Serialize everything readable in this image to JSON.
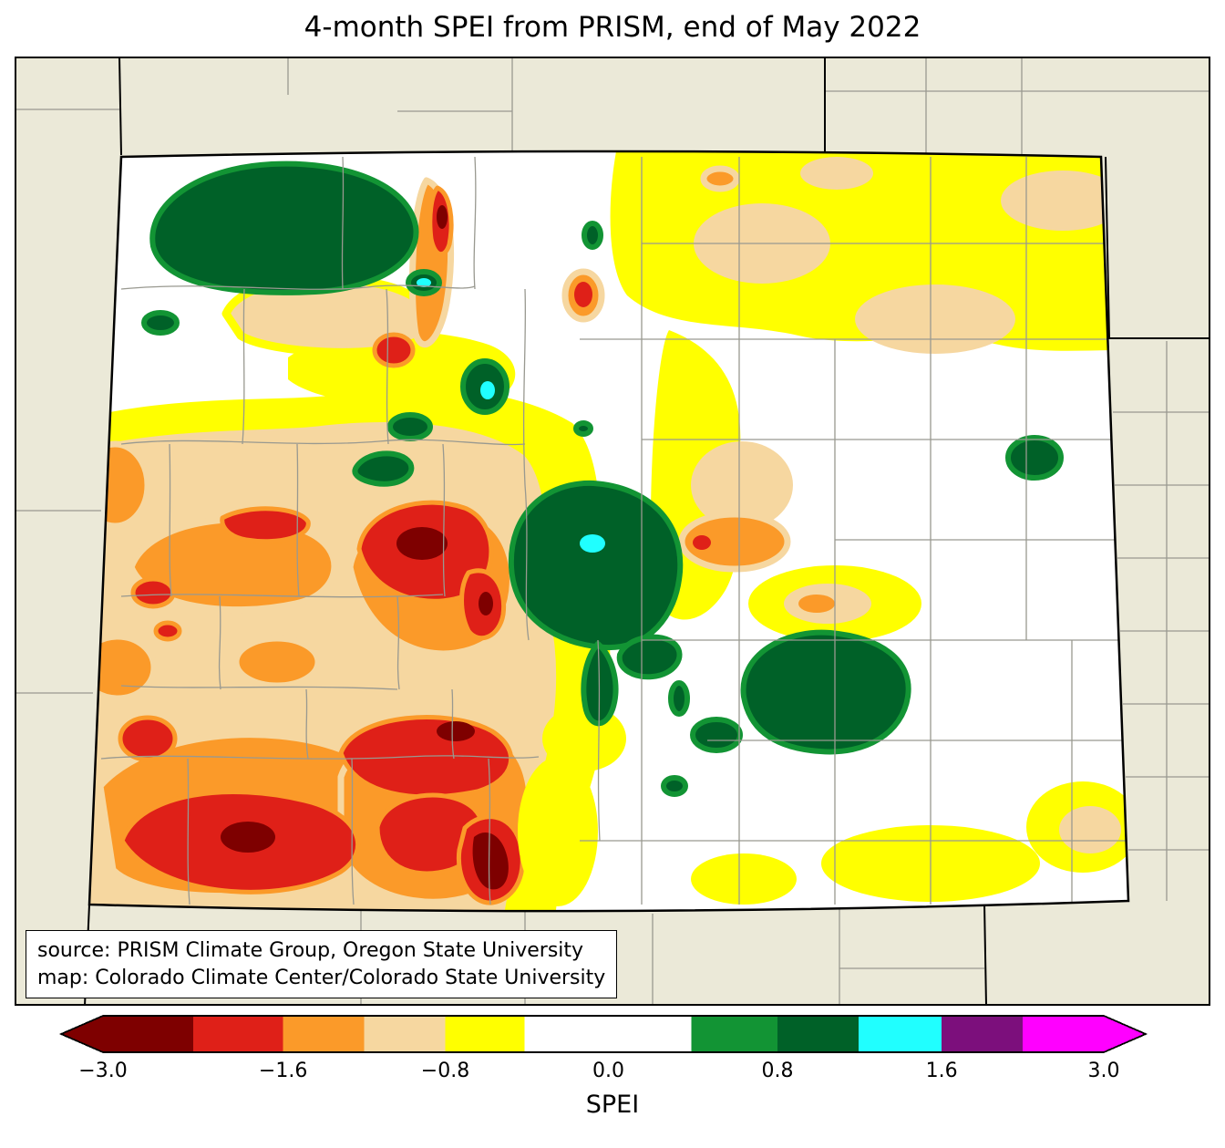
{
  "title": "4-month SPEI from PRISM, end of May 2022",
  "source_box": {
    "line1": "source: PRISM Climate Group, Oregon State University",
    "line2": "map: Colorado Climate Center/Colorado State University"
  },
  "map": {
    "depicts": "Colorado statewide SPEI filled-contour map with county boundaries and neighboring state borders"
  },
  "colorbar": {
    "label": "SPEI",
    "left_arrow_color": "darkred",
    "right_arrow_color": "magenta",
    "segments": [
      {
        "color": "darkred",
        "width_pct": 9.0
      },
      {
        "color": "red",
        "width_pct": 9.0
      },
      {
        "color": "orange",
        "width_pct": 8.1
      },
      {
        "color": "tan",
        "width_pct": 8.1
      },
      {
        "color": "yellow",
        "width_pct": 7.9
      },
      {
        "color": "white",
        "width_pct": 16.7
      },
      {
        "color": "green",
        "width_pct": 8.6
      },
      {
        "color": "darkgreen",
        "width_pct": 8.1
      },
      {
        "color": "cyan",
        "width_pct": 8.3
      },
      {
        "color": "purple",
        "width_pct": 8.1
      },
      {
        "color": "magenta",
        "width_pct": 8.1
      }
    ],
    "ticks": [
      {
        "label": "−3.0",
        "pos_pct": 0
      },
      {
        "label": "−1.6",
        "pos_pct": 18.0
      },
      {
        "label": "−0.8",
        "pos_pct": 34.2
      },
      {
        "label": "0.0",
        "pos_pct": 50.5
      },
      {
        "label": "0.8",
        "pos_pct": 67.4
      },
      {
        "label": "1.6",
        "pos_pct": 83.8
      },
      {
        "label": "3.0",
        "pos_pct": 100
      }
    ]
  },
  "palette": {
    "darkred": "#7e0000",
    "red": "#df2018",
    "orange": "#fb9a29",
    "tan": "#f6d7a0",
    "yellow": "#ffff00",
    "white": "#ffffff",
    "green": "#129434",
    "darkgreen": "#006128",
    "cyan": "#20ffff",
    "purple": "#7c0f7c",
    "magenta": "#ff00ff",
    "background": "#ebe9d8",
    "county": "#999990"
  }
}
